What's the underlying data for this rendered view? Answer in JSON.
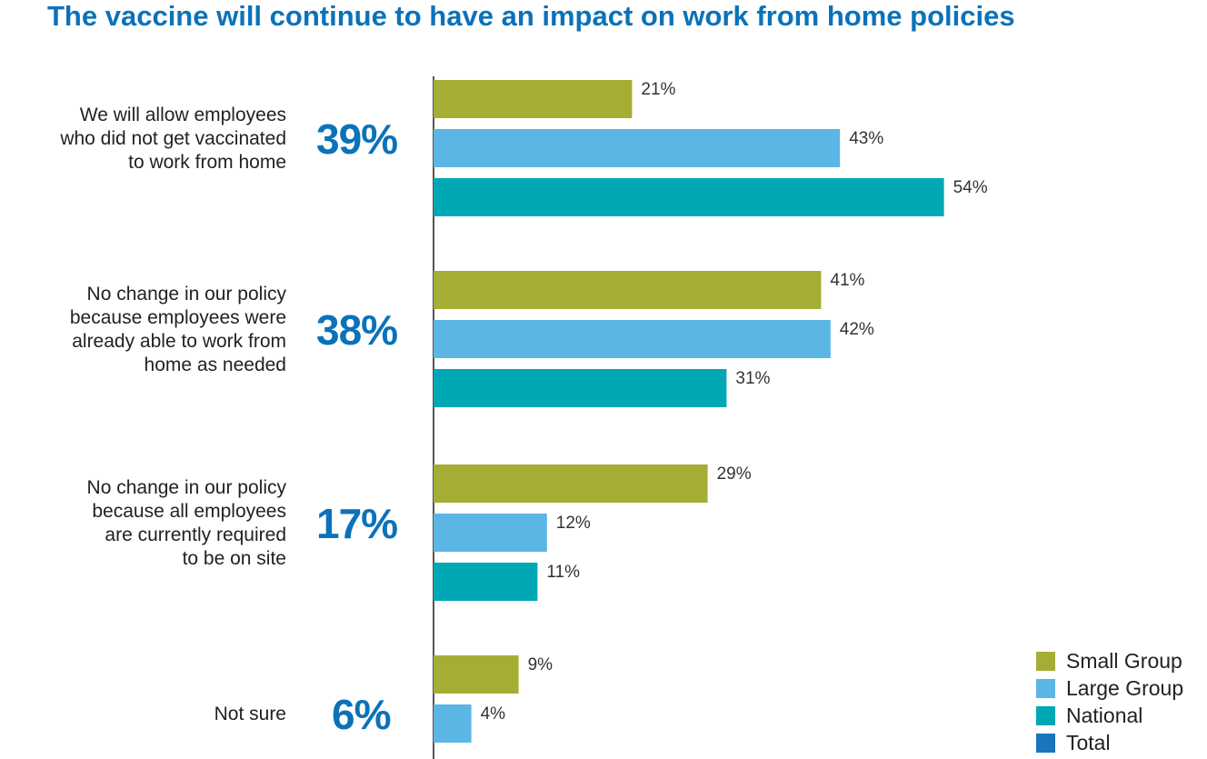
{
  "chart_data": {
    "type": "bar",
    "orientation": "horizontal",
    "title": "The vaccine will continue to have an impact on work from home policies",
    "categories": [
      "We will allow employees who did not get vaccinated to work from home",
      "No change in our policy because employees were already able to work from home as needed",
      "No change in our policy because all employees are currently required to be on site",
      "Not sure"
    ],
    "category_lines": [
      [
        "We will allow employees",
        "who did not get vaccinated",
        "to work from home"
      ],
      [
        "No change in our policy",
        "because employees were",
        "already able to work from",
        "home as needed"
      ],
      [
        "No change in our policy",
        "because all employees",
        "are currently required",
        "to be on site"
      ],
      [
        "Not sure"
      ]
    ],
    "overall_labels": [
      "39%",
      "38%",
      "17%",
      "6%"
    ],
    "overall": [
      39,
      38,
      17,
      6
    ],
    "series": [
      {
        "name": "Small Group",
        "values": [
          21,
          41,
          29,
          9
        ],
        "color": "#a6ad35"
      },
      {
        "name": "Large Group",
        "values": [
          43,
          42,
          12,
          4
        ],
        "color": "#5bb6e6"
      },
      {
        "name": "National",
        "values": [
          54,
          31,
          11,
          null
        ],
        "color": "#00a8b5"
      },
      {
        "name": "Total",
        "values": [
          null,
          null,
          null,
          null
        ],
        "color": "#1b75bb"
      }
    ],
    "value_suffix": "%",
    "xlim": [
      0,
      100
    ],
    "grid": false,
    "legend_position": "bottom-right"
  }
}
